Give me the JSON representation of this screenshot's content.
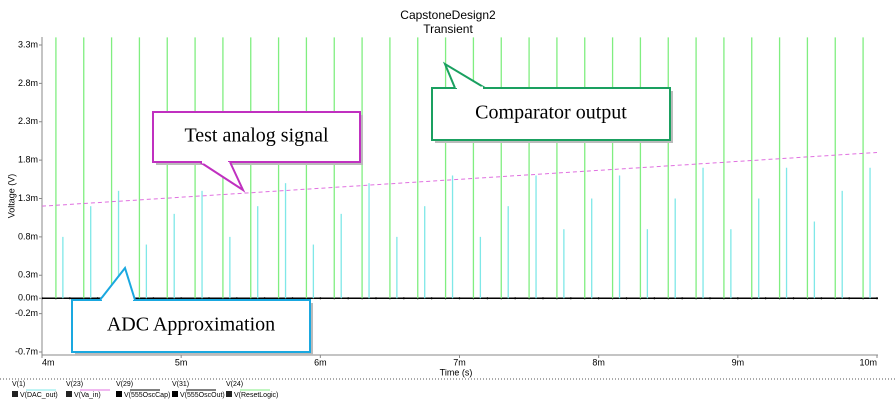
{
  "chart_data": {
    "type": "transient",
    "title": "CapstoneDesign2",
    "subtitle": "Transient",
    "x_label": "Time (s)",
    "y_label": "Voltage (V)",
    "xlim": [
      0.004,
      0.01
    ],
    "xticks": [
      {
        "value": 0.004,
        "label": "4m"
      },
      {
        "value": 0.005,
        "label": "5m"
      },
      {
        "value": 0.006,
        "label": "6m"
      },
      {
        "value": 0.007,
        "label": "7m"
      },
      {
        "value": 0.008,
        "label": "8m"
      },
      {
        "value": 0.009,
        "label": "9m"
      },
      {
        "value": 0.01,
        "label": "10m"
      }
    ],
    "ylim": [
      -0.0007,
      0.0033
    ],
    "yticks": [
      {
        "value": 0.0033,
        "label": "3.3m"
      },
      {
        "value": 0.0028,
        "label": "2.8m"
      },
      {
        "value": 0.0023,
        "label": "2.3m"
      },
      {
        "value": 0.0018,
        "label": "1.8m"
      },
      {
        "value": 0.0013,
        "label": "1.3m"
      },
      {
        "value": 0.0008,
        "label": "0.8m"
      },
      {
        "value": 0.0003,
        "label": "0.3m"
      },
      {
        "value": 0,
        "label": "0.0m"
      },
      {
        "value": -0.0002,
        "label": "-0.2m"
      },
      {
        "value": -0.0007,
        "label": "-0.7m"
      }
    ],
    "series": [
      {
        "node": "V(1)",
        "name": "V(DAC_out)",
        "color": "#7fe8e8",
        "style": "impulse",
        "x": [
          0.00415,
          0.00435,
          0.00455,
          0.00475,
          0.00495,
          0.00515,
          0.00535,
          0.00555,
          0.00575,
          0.00595,
          0.00615,
          0.00635,
          0.00655,
          0.00675,
          0.00695,
          0.00715,
          0.00735,
          0.00755,
          0.00775,
          0.00795,
          0.00815,
          0.00835,
          0.00855,
          0.00875,
          0.00895,
          0.00915,
          0.00935,
          0.00955,
          0.00975,
          0.00995
        ],
        "values": [
          0.0008,
          0.0012,
          0.0014,
          0.0007,
          0.0011,
          0.0014,
          0.0008,
          0.0012,
          0.0015,
          0.0007,
          0.0011,
          0.0015,
          0.0008,
          0.0012,
          0.0016,
          0.0008,
          0.0012,
          0.0016,
          0.0009,
          0.0013,
          0.0016,
          0.0009,
          0.0013,
          0.0017,
          0.0009,
          0.0013,
          0.0017,
          0.001,
          0.0014,
          0.0017
        ]
      },
      {
        "node": "V(23)",
        "name": "V(Va_in)",
        "color": "#e070e0",
        "style": "dashed",
        "x": [
          0.004,
          0.01
        ],
        "values": [
          0.0012,
          0.0019
        ]
      },
      {
        "node": "V(29)",
        "name": "V(555OscCap)",
        "color": "#000000",
        "style": "line",
        "x": [
          0.004,
          0.01
        ],
        "values": [
          0,
          0
        ]
      },
      {
        "node": "V(31)",
        "name": "V(555OscOut)",
        "color": "#000000",
        "style": "line",
        "x": [
          0.004,
          0.01
        ],
        "values": [
          0,
          0
        ]
      },
      {
        "node": "V(24)",
        "name": "V(ResetLogic)",
        "color": "#80ee80",
        "style": "impulse",
        "x": [
          0.0041,
          0.0043,
          0.0045,
          0.0047,
          0.0049,
          0.0051,
          0.0053,
          0.0055,
          0.0057,
          0.0059,
          0.0061,
          0.0063,
          0.0065,
          0.0067,
          0.0069,
          0.0071,
          0.0073,
          0.0075,
          0.0077,
          0.0079,
          0.0081,
          0.0083,
          0.0085,
          0.0087,
          0.0089,
          0.0091,
          0.0093,
          0.0095,
          0.0097,
          0.0099
        ],
        "values": [
          0.0034,
          0.0034,
          0.0034,
          0.0034,
          0.0034,
          0.0034,
          0.0034,
          0.0034,
          0.0034,
          0.0034,
          0.0034,
          0.0034,
          0.0034,
          0.0034,
          0.0034,
          0.0034,
          0.0034,
          0.0034,
          0.0034,
          0.0034,
          0.0034,
          0.0034,
          0.0034,
          0.0034,
          0.0034,
          0.0034,
          0.0034,
          0.0034,
          0.0034,
          0.0034
        ]
      }
    ],
    "annotations": [
      "Comparator output",
      "Test analog signal",
      "ADC Approximation"
    ]
  }
}
